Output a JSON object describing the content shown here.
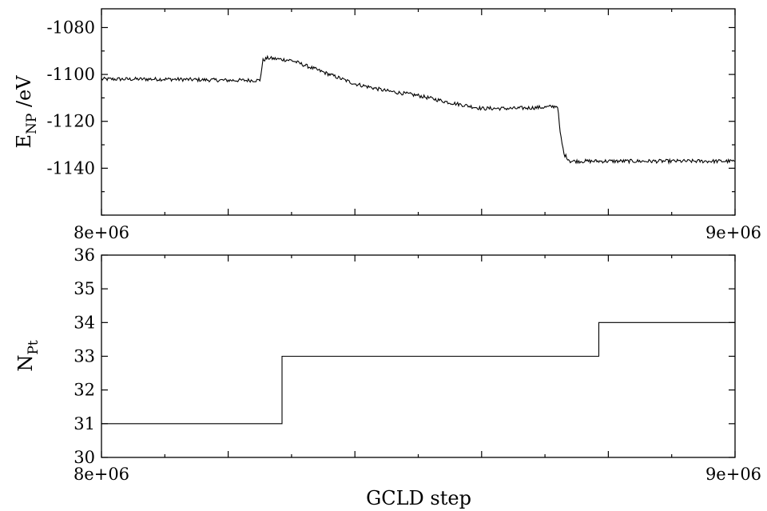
{
  "chart_data": [
    {
      "type": "line",
      "title": "",
      "xlabel": "",
      "ylabel": {
        "main": "E",
        "sub": "NP",
        "unit": " /eV"
      },
      "xlim": [
        8000000,
        9000000
      ],
      "ylim": [
        -1160,
        -1072
      ],
      "x_tick_labels": [
        "8e+06",
        "9e+06"
      ],
      "y_tick_labels": [
        "-1080",
        "-1100",
        "-1120",
        "-1140"
      ],
      "y_ticks": [
        -1080,
        -1100,
        -1120,
        -1140
      ],
      "grid": false,
      "legend": "none",
      "noise_amplitude_ev": 0.8,
      "series": [
        {
          "x": [
            8000000,
            8100000,
            8200000,
            8250000,
            8255000,
            8262000,
            8300000,
            8320000,
            8350000,
            8400000,
            8450000,
            8500000,
            8550000,
            8600000,
            8650000,
            8700000,
            8720000,
            8724000,
            8730000,
            8740000,
            8800000,
            8900000,
            9000000
          ],
          "y": [
            -1102,
            -1102,
            -1102.5,
            -1102.5,
            -1094,
            -1093,
            -1094,
            -1096,
            -1099,
            -1104,
            -1107,
            -1109,
            -1112,
            -1114.5,
            -1114.5,
            -1114,
            -1113.5,
            -1125,
            -1134,
            -1137,
            -1137,
            -1137,
            -1137
          ]
        }
      ]
    },
    {
      "type": "line",
      "title": "",
      "xlabel": "GCLD step",
      "ylabel": {
        "main": "N",
        "sub": "Pt",
        "unit": ""
      },
      "xlim": [
        8000000,
        9000000
      ],
      "ylim": [
        30,
        36
      ],
      "x_tick_labels": [
        "8e+06",
        "9e+06"
      ],
      "y_tick_labels": [
        "30",
        "31",
        "32",
        "33",
        "34",
        "35",
        "36"
      ],
      "y_ticks": [
        30,
        31,
        32,
        33,
        34,
        35,
        36
      ],
      "grid": false,
      "legend": "none",
      "series": [
        {
          "x": [
            8000000,
            8285000,
            8285000,
            8785000,
            8785000,
            9000000
          ],
          "y": [
            31,
            31,
            33,
            33,
            34,
            34
          ]
        }
      ]
    }
  ]
}
